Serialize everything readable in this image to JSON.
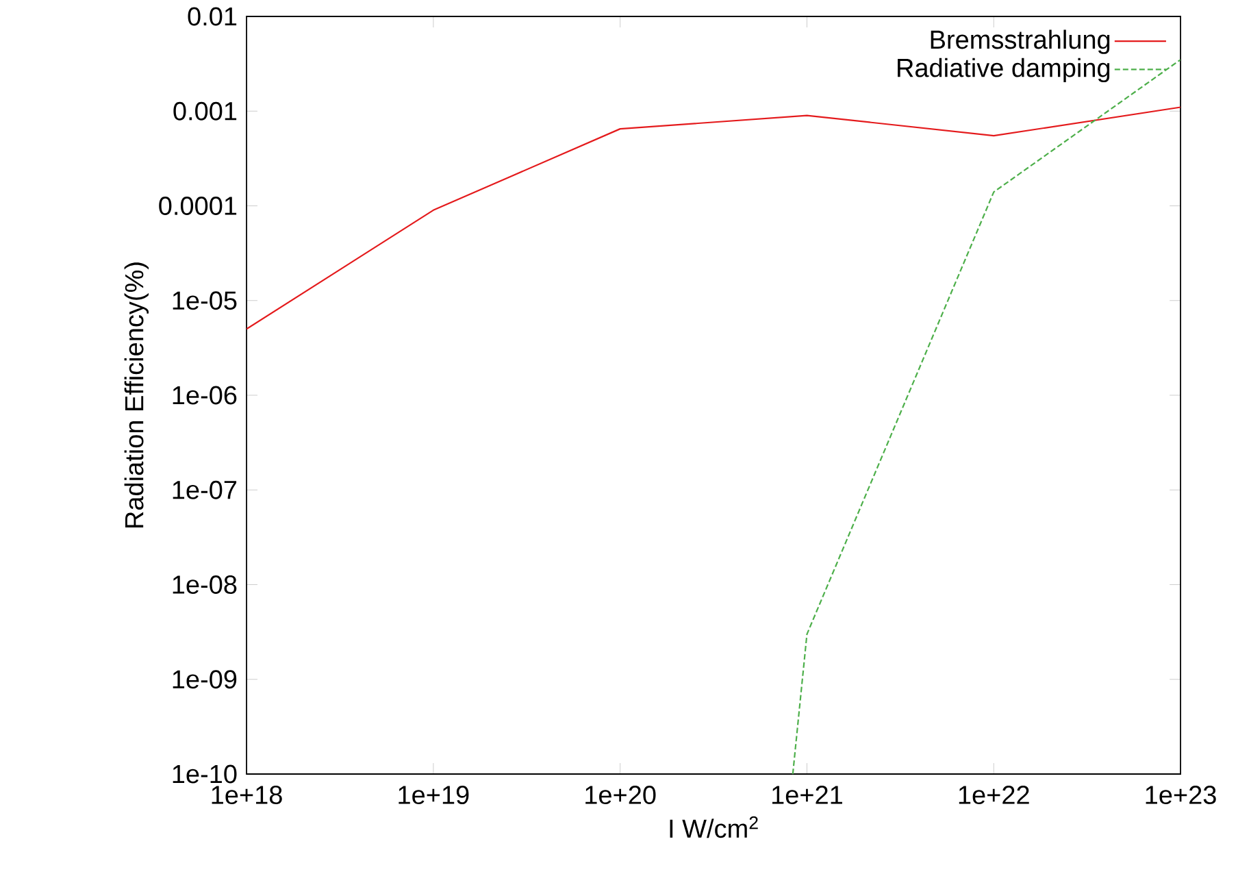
{
  "chart_data": {
    "type": "line",
    "xlabel": "I W/cm$^{2}$",
    "ylabel": "Radiation Efficiency(%)",
    "log": "xy",
    "grid": false,
    "legend": "top right",
    "marker": "none",
    "xlim": [
      1e+18,
      1e+23
    ],
    "ylim": [
      1e-10,
      0.01
    ],
    "xticks": [
      {
        "value": 1e+18,
        "label": "1e+18"
      },
      {
        "value": 1e+19,
        "label": "1e+19"
      },
      {
        "value": 1e+20,
        "label": "1e+20"
      },
      {
        "value": 1e+21,
        "label": "1e+21"
      },
      {
        "value": 1e+22,
        "label": "1e+22"
      },
      {
        "value": 1e+23,
        "label": "1e+23"
      }
    ],
    "yticks": [
      {
        "value": 1e-10,
        "label": "1e-10"
      },
      {
        "value": 1e-09,
        "label": "1e-09"
      },
      {
        "value": 1e-08,
        "label": "1e-08"
      },
      {
        "value": 1e-07,
        "label": "1e-07"
      },
      {
        "value": 1e-06,
        "label": "1e-06"
      },
      {
        "value": 1e-05,
        "label": "1e-05"
      },
      {
        "value": 0.0001,
        "label": "0.0001"
      },
      {
        "value": 0.001,
        "label": "0.001"
      },
      {
        "value": 0.01,
        "label": "0.01"
      }
    ],
    "series": [
      {
        "name": "Bremsstrahlung",
        "color": "#e41a1c",
        "line_style": "solid",
        "x": [
          1e+18,
          1e+19,
          1e+20,
          1e+21,
          1e+22,
          1e+23
        ],
        "values": [
          5e-06,
          9e-05,
          0.00065,
          0.0009,
          0.00055,
          0.0011
        ]
      },
      {
        "name": "Radiative damping",
        "color": "#4daf4a",
        "line_style": "dashed",
        "x": [
          8.4e+20,
          1e+21,
          1e+22,
          1e+23
        ],
        "values": [
          1e-10,
          3e-09,
          0.00014,
          0.0035
        ]
      }
    ]
  }
}
